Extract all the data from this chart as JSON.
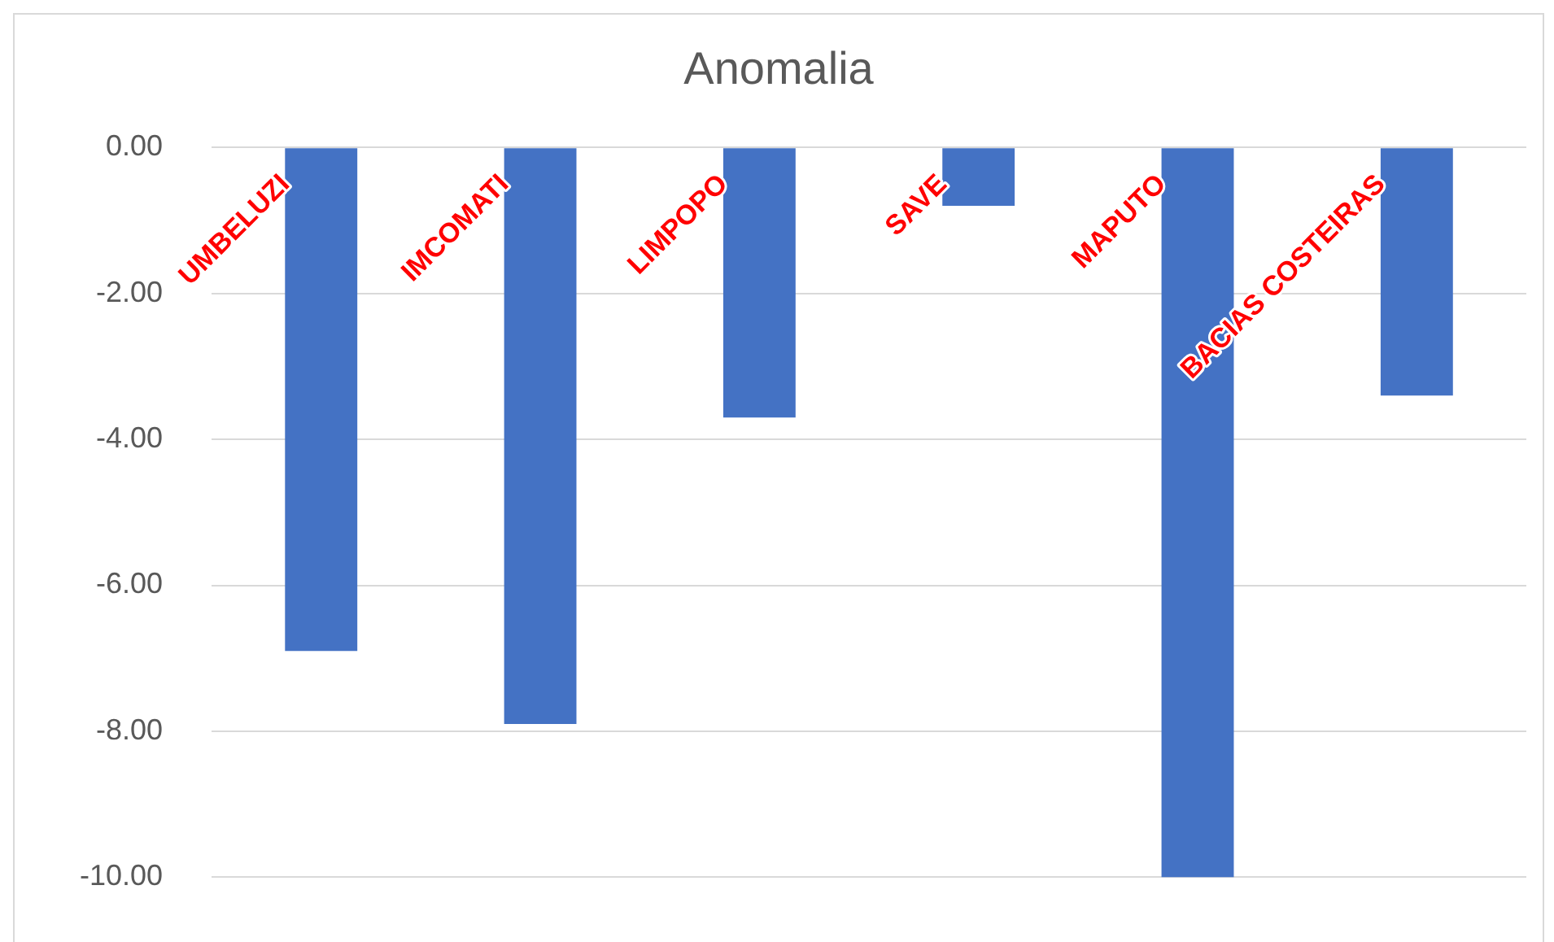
{
  "chart_data": {
    "type": "bar",
    "title": "Anomalia",
    "categories": [
      "UMBELUZI",
      "IMCOMATI",
      "LIMPOPO",
      "SAVE",
      "MAPUTO",
      "BACIAS COSTEIRAS"
    ],
    "values": [
      -6.9,
      -7.9,
      -3.7,
      -0.8,
      -10.0,
      -3.4
    ],
    "color": "#4472c4",
    "ylim": [
      -10,
      0
    ],
    "yticks": [
      {
        "value": 0,
        "label": "0.00"
      },
      {
        "value": -2,
        "label": "-2.00"
      },
      {
        "value": -4,
        "label": "-4.00"
      },
      {
        "value": -6,
        "label": "-6.00"
      },
      {
        "value": -8,
        "label": "-8.00"
      },
      {
        "value": -10,
        "label": "-10.00"
      }
    ],
    "grid": "y"
  }
}
